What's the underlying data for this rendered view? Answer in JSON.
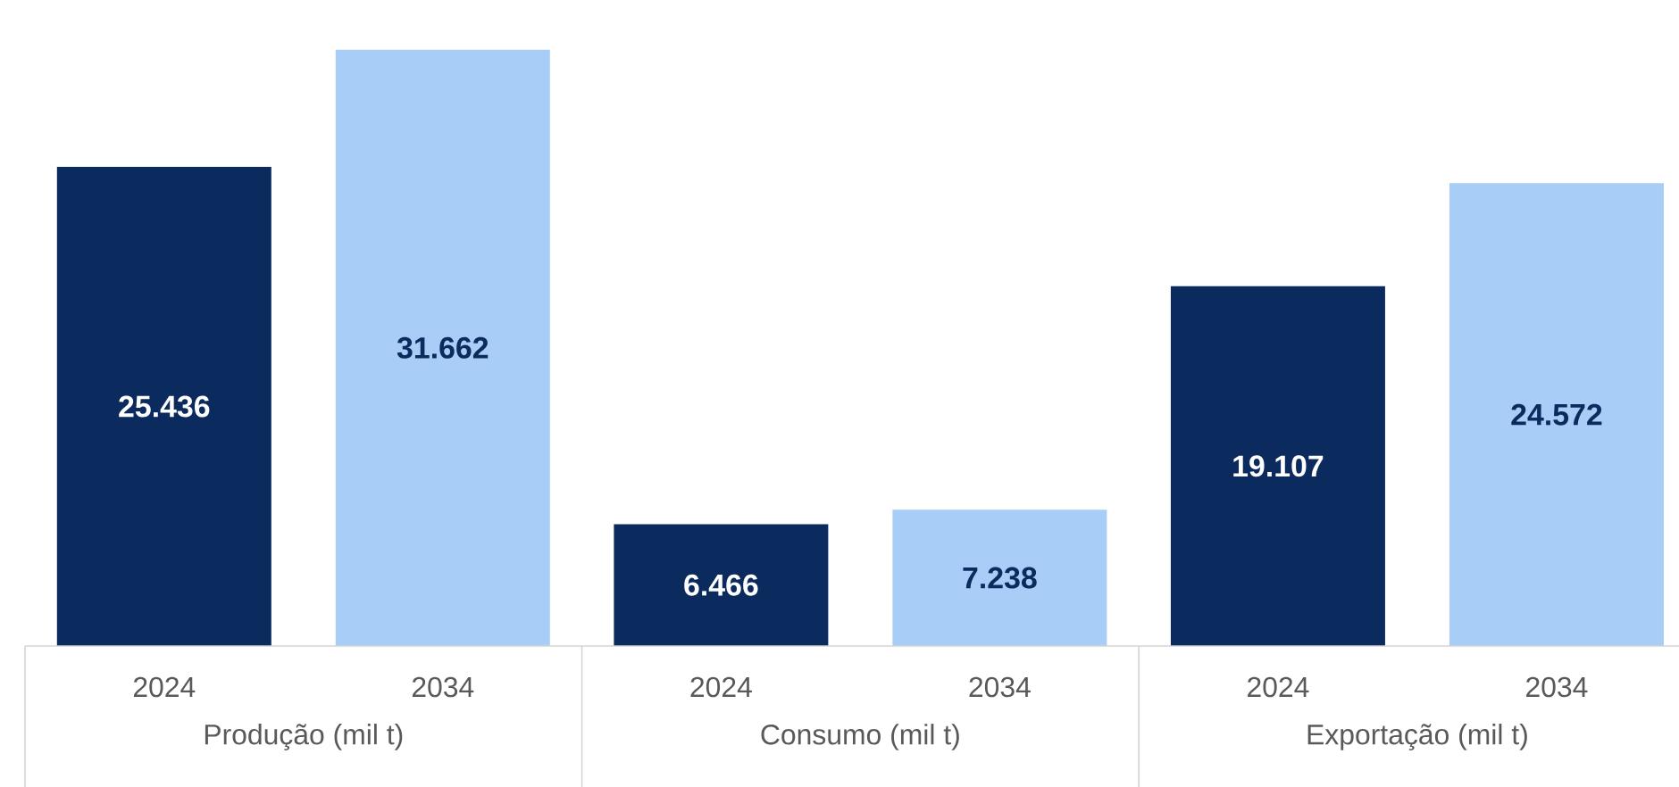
{
  "chart_data": {
    "type": "bar",
    "categories": [
      "Produção (mil t)",
      "Consumo (mil t)",
      "Exportação (mil t)"
    ],
    "series": [
      {
        "name": "2024",
        "color": "#0b2b5e",
        "values": [
          25436,
          6466,
          19107
        ],
        "value_labels": [
          "25.436",
          "6.466",
          "19.107"
        ]
      },
      {
        "name": "2034",
        "color": "#a8cdf6",
        "values": [
          31662,
          7238,
          24572
        ],
        "value_labels": [
          "31.662",
          "7.238",
          "24.572"
        ]
      }
    ]
  }
}
